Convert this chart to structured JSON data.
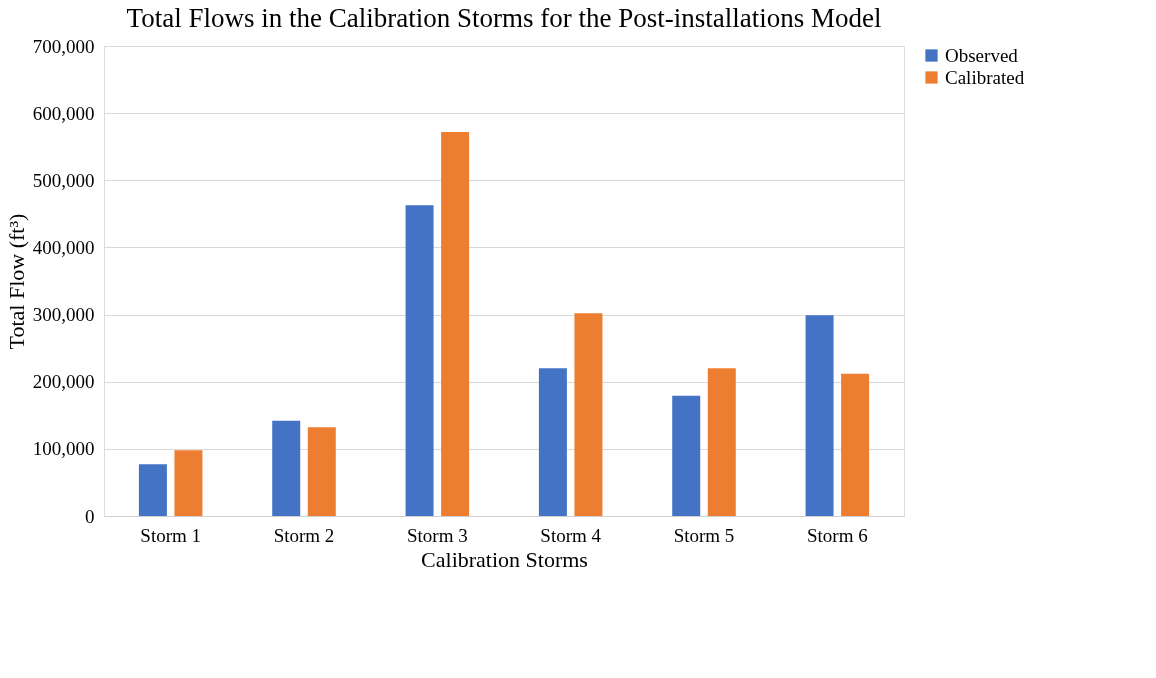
{
  "chart_data": {
    "type": "bar",
    "title": "Total Flows in the Calibration Storms for the Post-installations Model",
    "xlabel": "Calibration Storms",
    "ylabel": "Total Flow (ft³)",
    "categories": [
      "Storm 1",
      "Storm 2",
      "Storm 3",
      "Storm 4",
      "Storm 5",
      "Storm 6"
    ],
    "series": [
      {
        "name": "Observed",
        "color": "#4472c4",
        "values": [
          77000,
          142000,
          463000,
          220000,
          179000,
          299000
        ]
      },
      {
        "name": "Calibrated",
        "color": "#ed7d31",
        "values": [
          98000,
          132000,
          572000,
          302000,
          220000,
          212000
        ]
      }
    ],
    "ylim": [
      0,
      700000
    ],
    "yticks": [
      {
        "value": 0,
        "label": "0"
      },
      {
        "value": 100000,
        "label": "100,000"
      },
      {
        "value": 200000,
        "label": "200,000"
      },
      {
        "value": 300000,
        "label": "300,000"
      },
      {
        "value": 400000,
        "label": "400,000"
      },
      {
        "value": 500000,
        "label": "500,000"
      },
      {
        "value": 600000,
        "label": "600,000"
      },
      {
        "value": 700000,
        "label": "700,000"
      }
    ],
    "grid": "y",
    "legend": "right"
  }
}
